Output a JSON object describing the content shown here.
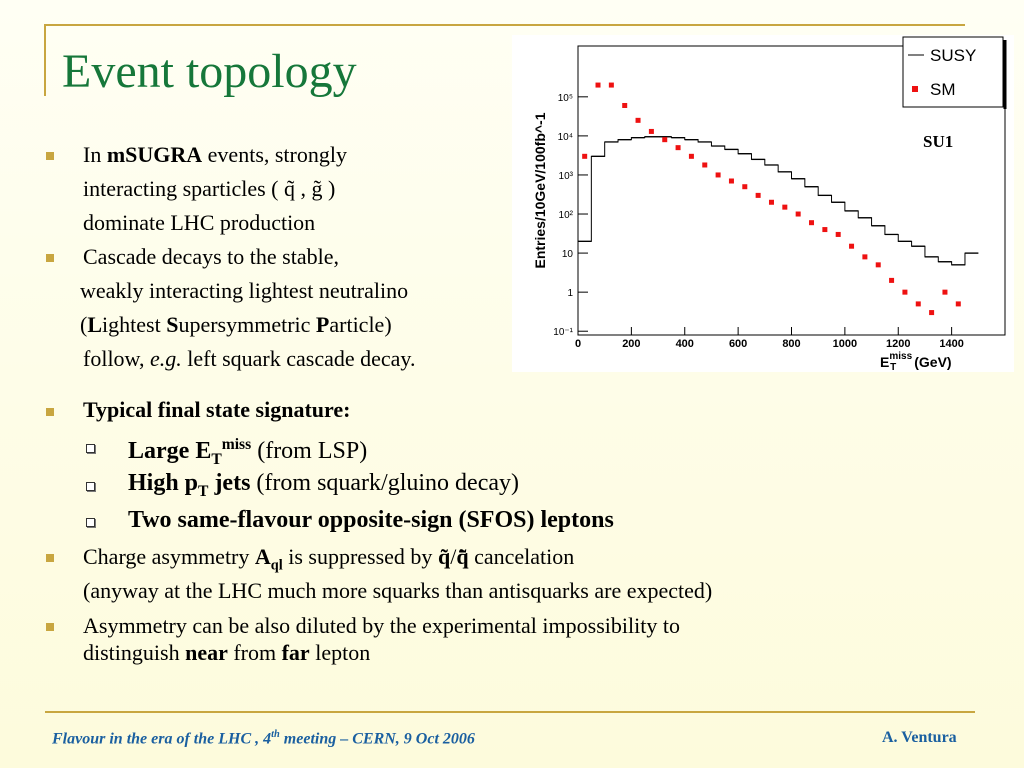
{
  "slide": {
    "title": "Event topology",
    "lines": [
      [
        "In ",
        "mSUGRA",
        " events, strongly"
      ],
      [
        "interacting sparticles ( q̃ , g̃ )"
      ],
      [
        "dominate LHC production"
      ],
      [
        "Cascade decays to the stable,"
      ],
      [
        "weakly interacting lightest neutralino"
      ],
      [
        "(",
        "L",
        "ightest ",
        "S",
        "upersymmetric ",
        "P",
        "article)"
      ],
      [
        "follow, ",
        "e.g.",
        " left squark cascade decay."
      ],
      [
        "Typical final state signature:"
      ],
      [
        "Large E",
        "T",
        "miss",
        " (from LSP)"
      ],
      [
        "High p",
        "T",
        " jets",
        " (from squark/gluino decay)"
      ],
      [
        "Two same-flavour opposite-sign (SFOS) leptons"
      ],
      [
        "Charge asymmetry ",
        "A",
        "ql",
        " is suppressed by ",
        "q̃",
        "/",
        "q̃̄",
        " cancelation"
      ],
      [
        "(anyway at the LHC much more squarks than antisquarks are expected)"
      ],
      [
        "Asymmetry can be also diluted by the experimental impossibility to"
      ],
      [
        "distinguish ",
        "near",
        " from ",
        "far",
        " lepton"
      ]
    ],
    "footer": [
      "Flavour in the era of  the LHC , 4",
      "th",
      " meeting   –   CERN, 9 Oct 2006"
    ],
    "author": "A. Ventura"
  },
  "plot": {
    "type": "histogram",
    "ylabel": "Entries/10GeV/100fb^-1",
    "xlabel": [
      "E",
      "T",
      "miss",
      "(GeV)"
    ],
    "annotation": "SU1",
    "log_y": true,
    "xlim": [
      0,
      1600
    ],
    "ylim": [
      0.08,
      2000000
    ],
    "xticks": [
      0,
      200,
      400,
      600,
      800,
      1000,
      1200,
      1400
    ],
    "yticks": [
      {
        "value": 0.1,
        "label": "10⁻¹"
      },
      1,
      10,
      {
        "value": 100,
        "label": "10²"
      },
      {
        "value": 1000,
        "label": "10³"
      },
      {
        "value": 10000,
        "label": "10⁴"
      },
      {
        "value": 100000,
        "label": "10⁵"
      }
    ],
    "series": [
      {
        "name": "SUSY",
        "color": "#000000",
        "style": "step",
        "bins": [
          0,
          50,
          100,
          150,
          200,
          250,
          300,
          350,
          400,
          450,
          500,
          550,
          600,
          650,
          700,
          750,
          800,
          850,
          900,
          950,
          1000,
          1050,
          1100,
          1150,
          1200,
          1250,
          1300,
          1350,
          1400,
          1450,
          1500
        ],
        "values": [
          20,
          3000,
          7000,
          8000,
          9000,
          9500,
          9500,
          9000,
          8000,
          7000,
          5500,
          4500,
          3500,
          2500,
          1800,
          1200,
          800,
          500,
          300,
          200,
          120,
          80,
          50,
          30,
          20,
          15,
          8,
          6,
          5,
          10
        ]
      },
      {
        "name": "SM",
        "color": "#ee1111",
        "style": "points",
        "x": [
          25,
          75,
          125,
          175,
          225,
          275,
          325,
          375,
          425,
          475,
          525,
          575,
          625,
          675,
          725,
          775,
          825,
          875,
          925,
          975,
          1025,
          1075,
          1125,
          1175,
          1225,
          1275,
          1325,
          1375,
          1425
        ],
        "values": [
          3000,
          200000,
          200000,
          60000,
          25000,
          13000,
          8000,
          5000,
          3000,
          1800,
          1000,
          700,
          500,
          300,
          200,
          150,
          100,
          60,
          40,
          30,
          15,
          8,
          5,
          2,
          1,
          0.5,
          0.3,
          1,
          0.5
        ]
      }
    ]
  }
}
